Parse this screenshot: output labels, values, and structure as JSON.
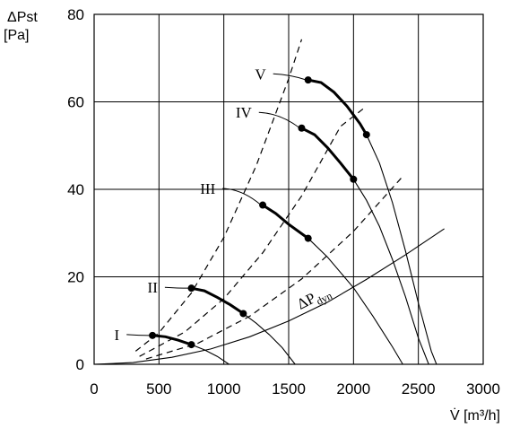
{
  "chart_data": {
    "type": "line",
    "xlabel": "V̇ [m³/h]",
    "ylabel_line1": "ΔPst",
    "ylabel_line2": "[Pa]",
    "xlim": [
      0,
      3000
    ],
    "ylim": [
      0,
      80
    ],
    "x_ticks": [
      0,
      500,
      1000,
      1500,
      2000,
      2500,
      3000
    ],
    "y_ticks": [
      0,
      20,
      40,
      60,
      80
    ],
    "grid": true,
    "fan_curves": [
      {
        "name": "I",
        "points": [
          [
            450,
            6.6
          ],
          [
            550,
            6.3
          ],
          [
            650,
            5.5
          ],
          [
            750,
            4.5
          ],
          [
            850,
            3.3
          ],
          [
            950,
            1.8
          ],
          [
            1040,
            0
          ]
        ],
        "operating_range": [
          [
            450,
            6.6
          ],
          [
            750,
            4.5
          ]
        ],
        "label_at": [
          195,
          6.8
        ]
      },
      {
        "name": "II",
        "points": [
          [
            750,
            17.4
          ],
          [
            850,
            16.8
          ],
          [
            950,
            15.3
          ],
          [
            1050,
            13.6
          ],
          [
            1150,
            11.6
          ],
          [
            1250,
            9.4
          ],
          [
            1350,
            6.8
          ],
          [
            1450,
            3.8
          ],
          [
            1550,
            0
          ]
        ],
        "operating_range": [
          [
            750,
            17.4
          ],
          [
            1150,
            11.6
          ]
        ],
        "label_at": [
          490,
          17.6
        ]
      },
      {
        "name": "III",
        "points": [
          [
            1300,
            36.4
          ],
          [
            1400,
            34.5
          ],
          [
            1500,
            32.0
          ],
          [
            1650,
            28.8
          ],
          [
            1800,
            24.5
          ],
          [
            2000,
            17.5
          ],
          [
            2150,
            11.0
          ],
          [
            2300,
            4.0
          ],
          [
            2380,
            0
          ]
        ],
        "operating_range": [
          [
            1300,
            36.4
          ],
          [
            1650,
            28.8
          ]
        ],
        "label_at": [
          935,
          40.2
        ]
      },
      {
        "name": "IV",
        "points": [
          [
            1600,
            54.0
          ],
          [
            1700,
            52.5
          ],
          [
            1800,
            49.5
          ],
          [
            1900,
            46.0
          ],
          [
            2000,
            42.3
          ],
          [
            2100,
            37.5
          ],
          [
            2200,
            31.5
          ],
          [
            2300,
            24.0
          ],
          [
            2400,
            15.5
          ],
          [
            2500,
            6.0
          ],
          [
            2580,
            0
          ]
        ],
        "operating_range": [
          [
            1600,
            54.0
          ],
          [
            2000,
            42.3
          ]
        ],
        "label_at": [
          1215,
          57.6
        ]
      },
      {
        "name": "V",
        "points": [
          [
            1650,
            65.0
          ],
          [
            1750,
            64.4
          ],
          [
            1850,
            62.2
          ],
          [
            1950,
            59.0
          ],
          [
            2050,
            55.0
          ],
          [
            2100,
            52.5
          ],
          [
            2200,
            46.0
          ],
          [
            2300,
            37.0
          ],
          [
            2400,
            26.0
          ],
          [
            2500,
            14.0
          ],
          [
            2600,
            3.0
          ],
          [
            2640,
            0
          ]
        ],
        "operating_range": [
          [
            1650,
            65.0
          ],
          [
            2100,
            52.5
          ]
        ],
        "label_at": [
          1325,
          66.4
        ]
      }
    ],
    "system_curves": [
      {
        "points": [
          [
            320,
            3.0
          ],
          [
            500,
            7.2
          ],
          [
            750,
            16.3
          ],
          [
            1000,
            29.0
          ],
          [
            1250,
            45.4
          ],
          [
            1500,
            65.3
          ],
          [
            1600,
            74.3
          ]
        ]
      },
      {
        "points": [
          [
            350,
            1.8
          ],
          [
            700,
            7.4
          ],
          [
            1000,
            15.0
          ],
          [
            1300,
            25.5
          ],
          [
            1600,
            38.5
          ],
          [
            1900,
            54.4
          ],
          [
            2100,
            59.0
          ]
        ]
      },
      {
        "points": [
          [
            400,
            1.2
          ],
          [
            800,
            4.8
          ],
          [
            1200,
            11.0
          ],
          [
            1600,
            19.5
          ],
          [
            2000,
            30.4
          ],
          [
            2350,
            42.0
          ],
          [
            2380,
            43.0
          ]
        ]
      }
    ],
    "dynamic_pressure_curve": {
      "name": "ΔPdyn",
      "name_main": "ΔP",
      "name_sub": "dyn",
      "points": [
        [
          0,
          0
        ],
        [
          300,
          0.4
        ],
        [
          600,
          1.6
        ],
        [
          900,
          3.5
        ],
        [
          1200,
          6.3
        ],
        [
          1500,
          9.9
        ],
        [
          1800,
          14.2
        ],
        [
          2100,
          19.4
        ],
        [
          2400,
          25.0
        ],
        [
          2700,
          31.0
        ]
      ],
      "label_at": [
        1590,
        12.5
      ]
    }
  }
}
